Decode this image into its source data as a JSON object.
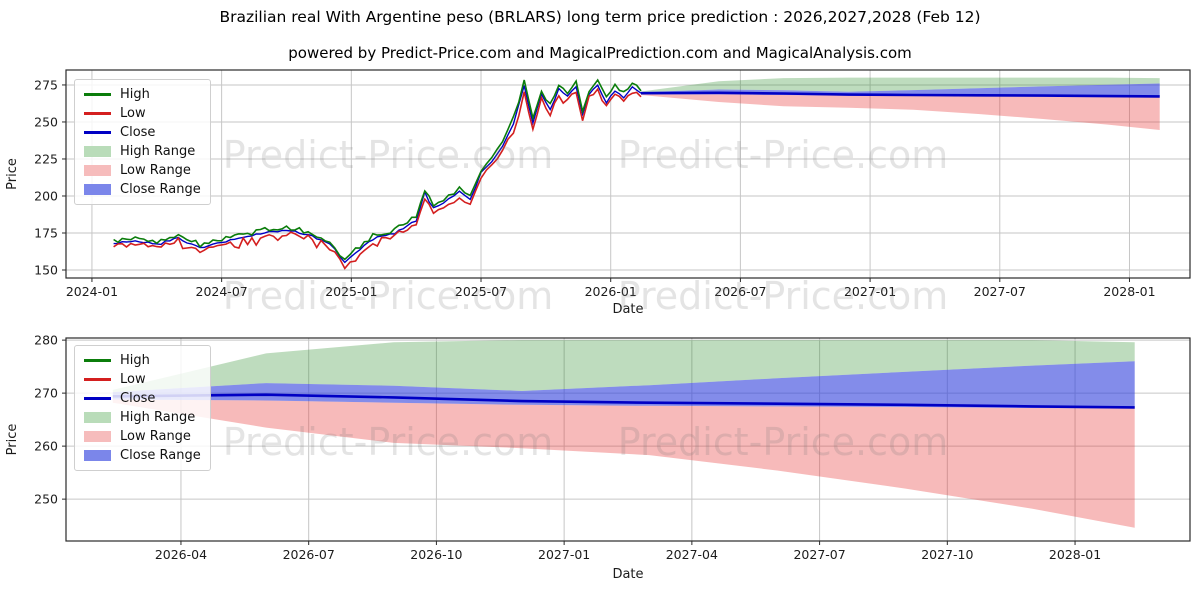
{
  "header": {
    "title": "Brazilian real With Argentine peso (BRLARS) long term price prediction : 2026,2027,2028 (Feb 12)",
    "subtitle": "powered by Predict-Price.com and MagicalPrediction.com and MagicalAnalysis.com"
  },
  "watermark": {
    "text": "Predict-Price.com"
  },
  "colors": {
    "high_line": "#0b7d0b",
    "low_line": "#d41f1f",
    "close_line": "#0000c4",
    "high_range_fill": "rgba(40,140,40,0.30)",
    "low_range_fill": "rgba(230,45,45,0.33)",
    "close_range_fill": "rgba(48,64,220,0.60)",
    "grid": "#c6c6c6",
    "spine": "#2a2a2a",
    "tick_label": "#1c1c1c"
  },
  "legend": {
    "items": [
      {
        "label": "High",
        "swatch": "line",
        "color": "#0b7d0b"
      },
      {
        "label": "Low",
        "swatch": "line",
        "color": "#d41f1f"
      },
      {
        "label": "Close",
        "swatch": "line",
        "color": "#0000c4"
      },
      {
        "label": "High Range",
        "swatch": "fill",
        "color": "#b9dcb9"
      },
      {
        "label": "Low Range",
        "swatch": "fill",
        "color": "#f6bcbc"
      },
      {
        "label": "Close Range",
        "swatch": "fill",
        "color": "#7b86ea"
      }
    ]
  },
  "chart_data": [
    {
      "type": "line",
      "name": "full-history-and-forecast",
      "x_unit": "months since 2024-01",
      "xlabel": "Date",
      "ylabel": "Price",
      "xtick_months": [
        0,
        6,
        12,
        18,
        24,
        30,
        36,
        42,
        48
      ],
      "xtick_labels": [
        "2024-01",
        "2024-07",
        "2025-01",
        "2025-07",
        "2026-01",
        "2026-07",
        "2027-01",
        "2027-07",
        "2028-01"
      ],
      "yticks": [
        150,
        175,
        200,
        225,
        250,
        275
      ],
      "xlim_months": [
        -1.2,
        50.8
      ],
      "ylim": [
        144.6,
        285.1
      ],
      "grid": true,
      "legend_position": "upper left",
      "history": {
        "m": [
          1.0,
          2.0,
          3.0,
          4.0,
          5.0,
          6.0,
          7.0,
          8.0,
          9.0,
          10.0,
          11.0,
          11.7,
          12.2,
          13.0,
          14.0,
          15.0,
          15.4,
          15.8,
          16.5,
          17.0,
          17.5,
          18.0,
          18.5,
          19.0,
          19.5,
          20.0,
          20.4,
          20.8,
          21.2,
          21.6,
          22.0,
          22.4,
          22.7,
          23.0,
          23.4,
          23.8,
          24.2,
          24.6,
          25.0,
          25.4
        ],
        "high": [
          169,
          172,
          169,
          174,
          167,
          171,
          174,
          177,
          179,
          176,
          170,
          157,
          164,
          173,
          177,
          186,
          205,
          194,
          200,
          206,
          200,
          218,
          226,
          236,
          252,
          278,
          252,
          272,
          261,
          275,
          270,
          277,
          258,
          272,
          278,
          266,
          274,
          270,
          277,
          271
        ],
        "low": [
          166,
          168,
          165,
          170,
          162,
          167,
          170,
          173,
          175,
          172,
          166,
          152,
          160,
          169,
          173,
          181,
          199,
          189,
          195,
          200,
          194,
          213,
          221,
          230,
          246,
          271,
          246,
          266,
          255,
          269,
          264,
          271,
          252,
          266,
          272,
          260,
          268,
          264,
          271,
          267
        ],
        "close": [
          167.5,
          170,
          167,
          172,
          164.5,
          169,
          172,
          175,
          177,
          174,
          168,
          154.5,
          162,
          171,
          175,
          183.5,
          202,
          191.5,
          197.5,
          203,
          197,
          215.5,
          223.5,
          233,
          249,
          274.5,
          249,
          269,
          258,
          272,
          267,
          274,
          255,
          269,
          275,
          263,
          271,
          267,
          274,
          269.4
        ]
      },
      "forecast": {
        "m": [
          25.4,
          29,
          32,
          35,
          38,
          41,
          44,
          47,
          49.4
        ],
        "high_upper": [
          270.6,
          277.5,
          279.6,
          280.0,
          280.0,
          280.0,
          280.0,
          280.0,
          279.6
        ],
        "close_upper": [
          270.2,
          271.9,
          271.4,
          270.4,
          271.5,
          272.8,
          274.0,
          275.2,
          276.0
        ],
        "close": [
          269.4,
          269.7,
          269.2,
          268.5,
          268.2,
          268.0,
          267.8,
          267.5,
          267.3
        ],
        "close_lower": [
          268.8,
          268.6,
          268.2,
          267.8,
          267.6,
          267.5,
          267.4,
          267.2,
          267.1
        ],
        "low_lower": [
          268.2,
          263.5,
          260.6,
          259.6,
          258.3,
          255.4,
          252.0,
          248.2,
          244.6
        ]
      }
    },
    {
      "type": "area",
      "name": "forecast-zoom",
      "x_unit": "months since 2024-01",
      "xlabel": "Date",
      "ylabel": "Price",
      "xtick_months": [
        27,
        30,
        33,
        36,
        39,
        42,
        45,
        48
      ],
      "xtick_labels": [
        "2026-04",
        "2026-07",
        "2026-10",
        "2027-01",
        "2027-04",
        "2027-07",
        "2027-10",
        "2028-01"
      ],
      "yticks": [
        250,
        260,
        270,
        280
      ],
      "xlim_months": [
        24.3,
        50.7
      ],
      "ylim": [
        242.1,
        280.4
      ],
      "grid": true,
      "legend_position": "upper left",
      "forecast": {
        "m": [
          25.4,
          29,
          32,
          35,
          38,
          41,
          44,
          47,
          49.4
        ],
        "high_upper": [
          270.6,
          277.5,
          279.6,
          280.0,
          280.0,
          280.0,
          280.0,
          280.0,
          279.6
        ],
        "close_upper": [
          270.2,
          271.9,
          271.4,
          270.4,
          271.5,
          272.8,
          274.0,
          275.2,
          276.0
        ],
        "close": [
          269.4,
          269.7,
          269.2,
          268.5,
          268.2,
          268.0,
          267.8,
          267.5,
          267.3
        ],
        "close_lower": [
          268.8,
          268.6,
          268.2,
          267.8,
          267.6,
          267.5,
          267.4,
          267.2,
          267.1
        ],
        "low_lower": [
          268.2,
          263.5,
          260.6,
          259.6,
          258.3,
          255.4,
          252.0,
          248.2,
          244.6
        ]
      }
    }
  ]
}
